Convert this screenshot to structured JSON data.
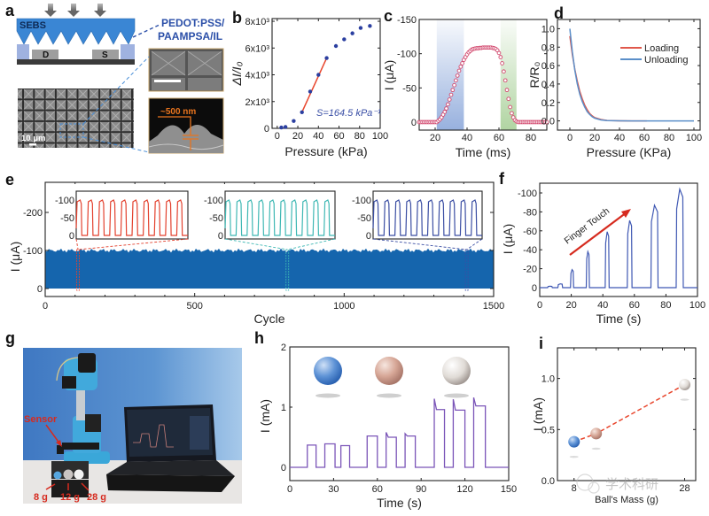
{
  "panels": {
    "a": {
      "letter": "a",
      "layer_top": "SEBS",
      "electrode_drain": "D",
      "electrode_source": "S",
      "material_label_line1": "PEDOT:PSS/",
      "material_label_line2": "PAAMPSA/IL",
      "sem_scale_bar": "10 μm",
      "cross_section_label": "~500 nm",
      "colors": {
        "sebs": "#3a86d4",
        "material_label": "#2b4fa8",
        "annotation": "#e8741e"
      }
    },
    "g": {
      "letter": "g",
      "sensor_label": "Sensor",
      "ball_labels": [
        "8 g",
        "12 g",
        "28 g"
      ],
      "colors": {
        "annotation": "#d62b1f"
      }
    },
    "watermark": "学术科研"
  },
  "chart_data": [
    {
      "id": "b",
      "letter": "b",
      "type": "scatter",
      "title": "",
      "xlabel": "Pressure (kPa)",
      "ylabel": "ΔI/I₀",
      "xlim": [
        -5,
        100
      ],
      "ylim": [
        0,
        8200
      ],
      "xticks": [
        0,
        20,
        40,
        60,
        80,
        100
      ],
      "yticks": [
        0,
        2000,
        4000,
        6000,
        8000
      ],
      "ytick_labels": [
        "0",
        "2x10³",
        "4x10³",
        "6x10³",
        "8x10³"
      ],
      "series": [
        {
          "name": "data",
          "color": "#2b3fa0",
          "x": [
            4,
            8,
            16,
            24,
            32,
            40,
            48,
            57,
            65,
            73,
            81,
            90
          ],
          "y": [
            60,
            100,
            550,
            1200,
            2750,
            4000,
            5250,
            6150,
            6650,
            7100,
            7500,
            7650
          ]
        },
        {
          "name": "fit",
          "color": "#e8452c",
          "x": [
            24,
            48
          ],
          "y": [
            1200,
            5250
          ]
        }
      ],
      "annotation": "S=164.5 kPa⁻¹"
    },
    {
      "id": "c",
      "letter": "c",
      "type": "scatter",
      "xlabel": "Time (ms)",
      "ylabel": "I (μA)",
      "xlim": [
        10,
        90
      ],
      "ylim": [
        0,
        -150
      ],
      "xticks": [
        20,
        40,
        60,
        80
      ],
      "yticks": [
        0,
        -50,
        -100,
        -150
      ],
      "shaded_regions": [
        {
          "x": [
            21,
            38
          ],
          "color": "#6b8fd0"
        },
        {
          "x": [
            61,
            71
          ],
          "color": "#8fc27a"
        }
      ],
      "series": [
        {
          "name": "current",
          "color": "#d2486e",
          "x": [
            10,
            11,
            12,
            13,
            14,
            15,
            16,
            17,
            18,
            19,
            20,
            21,
            22,
            23,
            24,
            25,
            26,
            27,
            28,
            29,
            30,
            31,
            32,
            33,
            34,
            35,
            36,
            37,
            38,
            39,
            40,
            41,
            42,
            43,
            44,
            45,
            46,
            47,
            48,
            49,
            50,
            51,
            52,
            53,
            54,
            55,
            56,
            57,
            58,
            59,
            60,
            61,
            62,
            63,
            64,
            65,
            66,
            67,
            68,
            69,
            70,
            71,
            72,
            73,
            74,
            75,
            76,
            77,
            78,
            79,
            80,
            81,
            82,
            83,
            84,
            85,
            86,
            87,
            88,
            89,
            90
          ],
          "y": [
            0,
            0,
            0,
            0,
            0,
            0,
            0,
            0,
            0,
            0,
            0,
            0,
            -2,
            -4,
            -7,
            -11,
            -15,
            -20,
            -26,
            -33,
            -40,
            -47,
            -54,
            -61,
            -68,
            -75,
            -81,
            -86,
            -91,
            -95,
            -99,
            -102,
            -104,
            -106,
            -107,
            -107.5,
            -108,
            -108,
            -108.5,
            -108.5,
            -109,
            -109,
            -109,
            -109,
            -109,
            -109,
            -108.5,
            -108,
            -107,
            -105,
            -101,
            -95,
            -86,
            -74,
            -61,
            -47,
            -34,
            -22,
            -13,
            -7,
            -3,
            -1,
            0,
            0,
            0,
            0,
            0,
            0,
            0,
            0,
            0,
            0,
            0,
            0,
            0,
            0,
            0,
            0,
            0,
            0,
            0
          ]
        }
      ]
    },
    {
      "id": "d",
      "letter": "d",
      "type": "line",
      "xlabel": "Pressure (KPa)",
      "ylabel": "R/R₀",
      "xlim": [
        -10,
        105
      ],
      "ylim": [
        -0.1,
        1.1
      ],
      "xticks": [
        0,
        20,
        40,
        60,
        80,
        100
      ],
      "yticks": [
        0.0,
        0.2,
        0.4,
        0.6,
        0.8,
        1.0
      ],
      "ytick_labels": [
        "0.0",
        "0.2",
        "0.4",
        "0.6",
        "0.8",
        "1.0"
      ],
      "legend": "top-right",
      "series": [
        {
          "name": "Loading",
          "color": "#e0584b",
          "x": [
            0,
            2,
            4,
            6,
            8,
            10,
            12,
            14,
            16,
            18,
            20,
            25,
            30,
            40,
            50,
            62
          ],
          "y": [
            0.92,
            0.72,
            0.56,
            0.43,
            0.32,
            0.24,
            0.17,
            0.12,
            0.08,
            0.055,
            0.035,
            0.015,
            0.005,
            0.001,
            0,
            0
          ]
        },
        {
          "name": "Unloading",
          "color": "#5b8fc9",
          "x": [
            0,
            2,
            4,
            6,
            8,
            10,
            12,
            14,
            16,
            18,
            20,
            25,
            30,
            40,
            50,
            60,
            70,
            80,
            90,
            100
          ],
          "y": [
            1.0,
            0.75,
            0.55,
            0.4,
            0.29,
            0.21,
            0.15,
            0.1,
            0.07,
            0.045,
            0.03,
            0.01,
            0.004,
            0.001,
            0,
            0,
            0,
            0,
            0,
            0
          ]
        }
      ]
    },
    {
      "id": "e",
      "letter": "e",
      "type": "area",
      "xlabel": "Cycle",
      "ylabel": "I (μA)",
      "xlim": [
        0,
        1500
      ],
      "ylim": [
        10,
        -270
      ],
      "xticks": [
        0,
        500,
        1000,
        1500
      ],
      "yticks": [
        0,
        -100,
        -200
      ],
      "series": [
        {
          "name": "cycling current",
          "color": "#1565ad",
          "baseline": 0,
          "peak": -102
        }
      ],
      "insets": [
        {
          "color": "#e3412e",
          "cycle_marker": 110,
          "yticks": [
            0,
            -50,
            -100
          ],
          "pulses": 10,
          "peak": -100
        },
        {
          "color": "#3fb8b4",
          "cycle_marker": 810,
          "yticks": [
            0,
            -50,
            -100
          ],
          "pulses": 10,
          "peak": -100
        },
        {
          "color": "#3b4ea3",
          "cycle_marker": 1410,
          "yticks": [
            0,
            -50,
            -100
          ],
          "pulses": 10,
          "peak": -100
        }
      ]
    },
    {
      "id": "f",
      "letter": "f",
      "type": "line",
      "xlabel": "Time (s)",
      "ylabel": "I (μA)",
      "xlim": [
        0,
        100
      ],
      "ylim": [
        10,
        -110
      ],
      "xticks": [
        0,
        20,
        40,
        60,
        80,
        100
      ],
      "yticks": [
        0,
        -20,
        -40,
        -60,
        -80,
        -100
      ],
      "annotation": "Finger Touch",
      "annotation_color": "#d62b1f",
      "series": [
        {
          "name": "current",
          "color": "#3f58b3",
          "pulses": [
            {
              "start": 5,
              "end": 8,
              "peak": -1.5
            },
            {
              "start": 11.5,
              "end": 14.5,
              "peak": -4
            },
            {
              "start": 19.5,
              "end": 21.5,
              "peak": -19
            },
            {
              "start": 29.5,
              "end": 31.5,
              "peak": -38
            },
            {
              "start": 41.5,
              "end": 44,
              "peak": -59
            },
            {
              "start": 55.5,
              "end": 58.5,
              "peak": -71
            },
            {
              "start": 70.5,
              "end": 75,
              "peak": -87
            },
            {
              "start": 86.5,
              "end": 91,
              "peak": -104
            }
          ]
        }
      ]
    },
    {
      "id": "h",
      "letter": "h",
      "type": "line",
      "xlabel": "Time (s)",
      "ylabel": "I (mA)",
      "xlim": [
        0,
        150
      ],
      "ylim": [
        -0.2,
        2
      ],
      "xticks": [
        0,
        30,
        60,
        90,
        120,
        150
      ],
      "yticks": [
        0,
        1,
        2
      ],
      "series": [
        {
          "name": "current",
          "color": "#7b55b8",
          "pulses": [
            {
              "start": 12,
              "end": 18,
              "level": 0.37
            },
            {
              "start": 24,
              "end": 31,
              "level": 0.39
            },
            {
              "start": 35,
              "end": 41,
              "level": 0.36
            },
            {
              "start": 53,
              "end": 60,
              "level": 0.52
            },
            {
              "start": 66,
              "end": 73,
              "level": 0.5,
              "spike": 0.58
            },
            {
              "start": 79,
              "end": 86,
              "level": 0.52,
              "spike": 0.56
            },
            {
              "start": 99,
              "end": 106,
              "level": 0.96,
              "spike": 1.14
            },
            {
              "start": 112,
              "end": 120,
              "level": 0.95,
              "spike": 1.13
            },
            {
              "start": 126,
              "end": 134,
              "level": 1.02,
              "spike": 1.16
            }
          ]
        }
      ],
      "ball_icons": [
        {
          "name": "8 g ball",
          "color": "#2f6fc4"
        },
        {
          "name": "12 g ball",
          "color": "#c9907e"
        },
        {
          "name": "28 g ball",
          "color": "#c9c2ba"
        }
      ]
    },
    {
      "id": "i",
      "letter": "i",
      "type": "scatter",
      "xlabel": "Ball's Mass (g)",
      "ylabel": "I (mA)",
      "xlim": [
        5,
        30
      ],
      "ylim": [
        0,
        1.3
      ],
      "xticks": [
        8,
        28
      ],
      "xtick_labels": [
        "8",
        "28"
      ],
      "yticks": [
        0.0,
        0.5,
        1.0
      ],
      "ytick_labels": [
        "0.0",
        "0.5",
        "1.0"
      ],
      "series": [
        {
          "name": "mass vs current",
          "line_color": "#e8452c",
          "x": [
            8,
            12,
            28
          ],
          "y": [
            0.38,
            0.46,
            0.94
          ],
          "colors": [
            "#2f6fc4",
            "#c9907e",
            "#c9c2ba"
          ]
        }
      ]
    }
  ]
}
